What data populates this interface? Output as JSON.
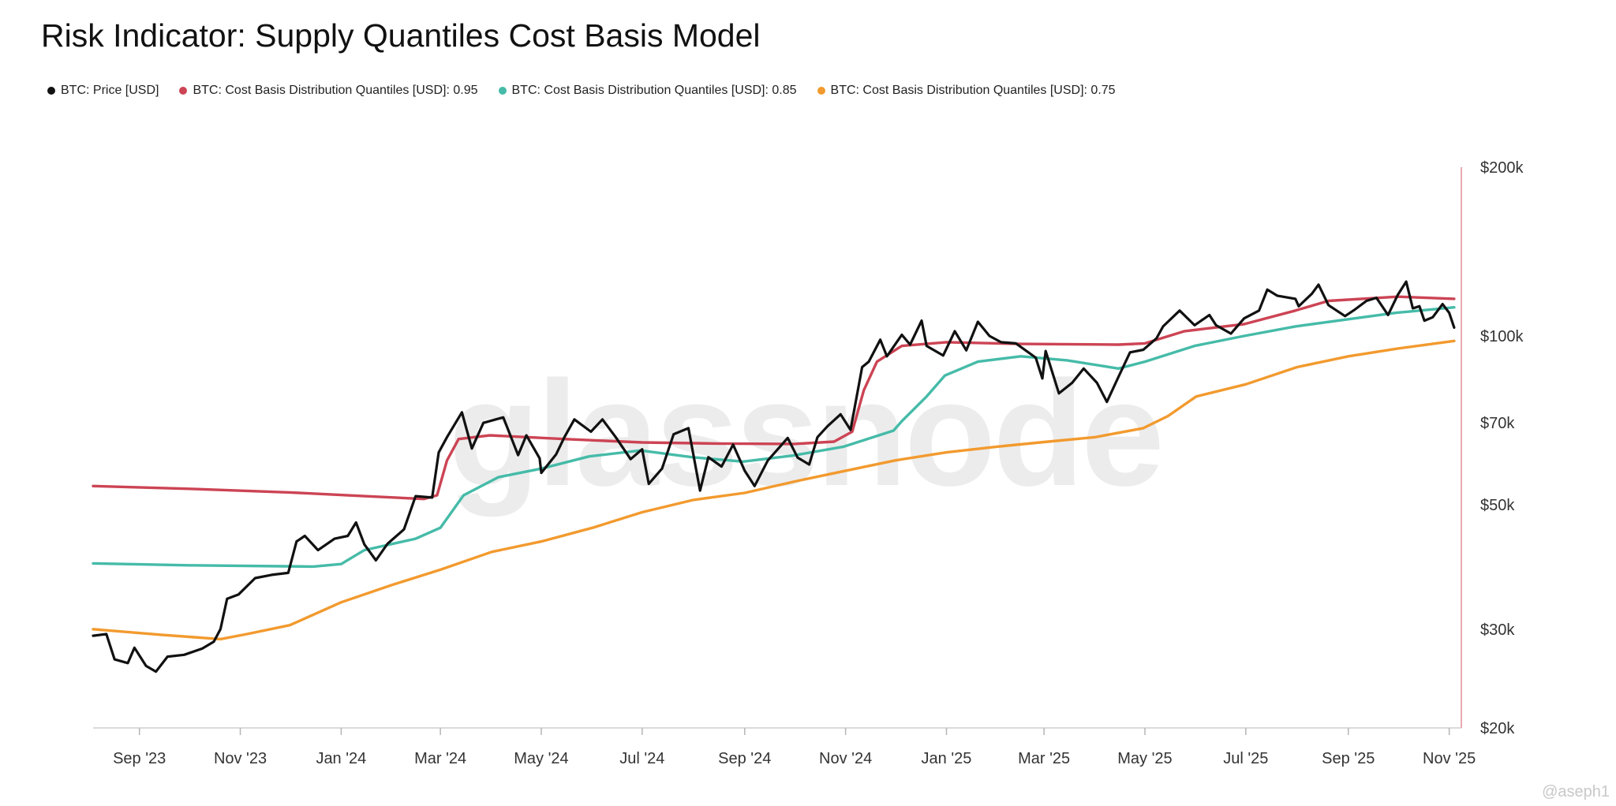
{
  "title": "Risk Indicator: Supply Quantiles Cost Basis Model",
  "watermark": "glassnode",
  "credit": "@aseph1",
  "colors": {
    "price": "#111111",
    "q95": "#cc4454",
    "q85": "#45bba8",
    "q75": "#f29a2e",
    "axis": "#cfcfcf",
    "right_axis_line": "#e8aab2"
  },
  "legend": [
    {
      "label": "BTC: Price [USD]",
      "color": "#111111"
    },
    {
      "label": "BTC: Cost Basis Distribution Quantiles [USD]: 0.95",
      "color": "#cc4454"
    },
    {
      "label": "BTC: Cost Basis Distribution Quantiles [USD]: 0.85",
      "color": "#45bba8"
    },
    {
      "label": "BTC: Cost Basis Distribution Quantiles [USD]: 0.75",
      "color": "#f29a2e"
    }
  ],
  "chart_data": {
    "type": "line",
    "title": "Risk Indicator: Supply Quantiles Cost Basis Model",
    "y_scale": "log",
    "ylim": [
      20000,
      200000
    ],
    "xlim": [
      "2023-08-04",
      "2025-11-05"
    ],
    "x_ticks": [
      {
        "date": "2023-09-01",
        "label": "Sep '23"
      },
      {
        "date": "2023-11-01",
        "label": "Nov '23"
      },
      {
        "date": "2024-01-01",
        "label": "Jan '24"
      },
      {
        "date": "2024-03-01",
        "label": "Mar '24"
      },
      {
        "date": "2024-05-01",
        "label": "May '24"
      },
      {
        "date": "2024-07-01",
        "label": "Jul '24"
      },
      {
        "date": "2024-09-01",
        "label": "Sep '24"
      },
      {
        "date": "2024-11-01",
        "label": "Nov '24"
      },
      {
        "date": "2025-01-01",
        "label": "Jan '25"
      },
      {
        "date": "2025-03-01",
        "label": "Mar '25"
      },
      {
        "date": "2025-05-01",
        "label": "May '25"
      },
      {
        "date": "2025-07-01",
        "label": "Jul '25"
      },
      {
        "date": "2025-09-01",
        "label": "Sep '25"
      },
      {
        "date": "2025-11-01",
        "label": "Nov '25"
      }
    ],
    "y_ticks": [
      {
        "value": 200000,
        "label": "$200k"
      },
      {
        "value": 100000,
        "label": "$100k"
      },
      {
        "value": 70000,
        "label": "$70k"
      },
      {
        "value": 50000,
        "label": "$50k"
      },
      {
        "value": 30000,
        "label": "$30k"
      },
      {
        "value": 20000,
        "label": "$20k"
      }
    ],
    "series": [
      {
        "name": "BTC: Price [USD]",
        "color": "#111111",
        "points": [
          [
            "2023-08-04",
            29200
          ],
          [
            "2023-08-12",
            29400
          ],
          [
            "2023-08-17",
            26500
          ],
          [
            "2023-08-25",
            26100
          ],
          [
            "2023-08-29",
            27800
          ],
          [
            "2023-09-05",
            25800
          ],
          [
            "2023-09-11",
            25200
          ],
          [
            "2023-09-18",
            26800
          ],
          [
            "2023-09-28",
            27000
          ],
          [
            "2023-10-09",
            27700
          ],
          [
            "2023-10-16",
            28500
          ],
          [
            "2023-10-20",
            30000
          ],
          [
            "2023-10-24",
            34000
          ],
          [
            "2023-10-31",
            34600
          ],
          [
            "2023-11-10",
            37000
          ],
          [
            "2023-11-20",
            37500
          ],
          [
            "2023-11-30",
            37800
          ],
          [
            "2023-12-05",
            43000
          ],
          [
            "2023-12-10",
            44000
          ],
          [
            "2023-12-18",
            41500
          ],
          [
            "2023-12-28",
            43500
          ],
          [
            "2024-01-05",
            44000
          ],
          [
            "2024-01-10",
            46500
          ],
          [
            "2024-01-15",
            42500
          ],
          [
            "2024-01-22",
            39800
          ],
          [
            "2024-01-29",
            42600
          ],
          [
            "2024-02-08",
            45200
          ],
          [
            "2024-02-15",
            51800
          ],
          [
            "2024-02-25",
            51500
          ],
          [
            "2024-02-29",
            62000
          ],
          [
            "2024-03-05",
            66000
          ],
          [
            "2024-03-14",
            73100
          ],
          [
            "2024-03-20",
            63000
          ],
          [
            "2024-03-27",
            70000
          ],
          [
            "2024-04-08",
            71600
          ],
          [
            "2024-04-17",
            61300
          ],
          [
            "2024-04-22",
            66500
          ],
          [
            "2024-04-30",
            60500
          ],
          [
            "2024-05-01",
            57000
          ],
          [
            "2024-05-10",
            61500
          ],
          [
            "2024-05-15",
            66000
          ],
          [
            "2024-05-21",
            71000
          ],
          [
            "2024-05-31",
            67500
          ],
          [
            "2024-06-07",
            71000
          ],
          [
            "2024-06-15",
            66000
          ],
          [
            "2024-06-24",
            60300
          ],
          [
            "2024-07-01",
            62800
          ],
          [
            "2024-07-05",
            54500
          ],
          [
            "2024-07-13",
            58000
          ],
          [
            "2024-07-20",
            66800
          ],
          [
            "2024-07-29",
            68500
          ],
          [
            "2024-08-05",
            53000
          ],
          [
            "2024-08-10",
            60800
          ],
          [
            "2024-08-18",
            58500
          ],
          [
            "2024-08-25",
            64000
          ],
          [
            "2024-09-01",
            57500
          ],
          [
            "2024-09-07",
            54000
          ],
          [
            "2024-09-15",
            60000
          ],
          [
            "2024-09-27",
            65800
          ],
          [
            "2024-10-03",
            60700
          ],
          [
            "2024-10-10",
            59000
          ],
          [
            "2024-10-15",
            66000
          ],
          [
            "2024-10-21",
            69000
          ],
          [
            "2024-10-29",
            72500
          ],
          [
            "2024-11-04",
            68000
          ],
          [
            "2024-11-11",
            88000
          ],
          [
            "2024-11-15",
            90000
          ],
          [
            "2024-11-22",
            98500
          ],
          [
            "2024-11-26",
            92000
          ],
          [
            "2024-12-05",
            100500
          ],
          [
            "2024-12-10",
            96500
          ],
          [
            "2024-12-17",
            106500
          ],
          [
            "2024-12-20",
            96000
          ],
          [
            "2024-12-30",
            92300
          ],
          [
            "2025-01-06",
            102000
          ],
          [
            "2025-01-13",
            94300
          ],
          [
            "2025-01-20",
            106000
          ],
          [
            "2025-01-27",
            100000
          ],
          [
            "2025-02-03",
            97500
          ],
          [
            "2025-02-12",
            97000
          ],
          [
            "2025-02-24",
            91500
          ],
          [
            "2025-02-28",
            84000
          ],
          [
            "2025-03-02",
            94000
          ],
          [
            "2025-03-10",
            79000
          ],
          [
            "2025-03-18",
            82500
          ],
          [
            "2025-03-25",
            87500
          ],
          [
            "2025-04-02",
            82500
          ],
          [
            "2025-04-08",
            76300
          ],
          [
            "2025-04-15",
            84500
          ],
          [
            "2025-04-22",
            93500
          ],
          [
            "2025-04-30",
            94500
          ],
          [
            "2025-05-08",
            99000
          ],
          [
            "2025-05-12",
            104000
          ],
          [
            "2025-05-22",
            111000
          ],
          [
            "2025-05-31",
            104500
          ],
          [
            "2025-06-09",
            109000
          ],
          [
            "2025-06-13",
            104500
          ],
          [
            "2025-06-22",
            101000
          ],
          [
            "2025-06-30",
            107500
          ],
          [
            "2025-07-09",
            111000
          ],
          [
            "2025-07-14",
            121000
          ],
          [
            "2025-07-20",
            118000
          ],
          [
            "2025-07-31",
            116500
          ],
          [
            "2025-08-02",
            113000
          ],
          [
            "2025-08-10",
            119000
          ],
          [
            "2025-08-14",
            123500
          ],
          [
            "2025-08-20",
            113500
          ],
          [
            "2025-08-30",
            108500
          ],
          [
            "2025-09-05",
            111500
          ],
          [
            "2025-09-12",
            115500
          ],
          [
            "2025-09-18",
            117000
          ],
          [
            "2025-09-25",
            109000
          ],
          [
            "2025-10-01",
            118500
          ],
          [
            "2025-10-06",
            125000
          ],
          [
            "2025-10-10",
            112000
          ],
          [
            "2025-10-14",
            113000
          ],
          [
            "2025-10-17",
            106500
          ],
          [
            "2025-10-22",
            108000
          ],
          [
            "2025-10-28",
            114000
          ],
          [
            "2025-11-01",
            110000
          ],
          [
            "2025-11-04",
            103500
          ]
        ]
      },
      {
        "name": "BTC: Cost Basis Distribution Quantiles [USD]: 0.95",
        "color": "#cc4454",
        "points": [
          [
            "2023-08-04",
            54000
          ],
          [
            "2023-10-01",
            53400
          ],
          [
            "2023-12-01",
            52600
          ],
          [
            "2024-01-15",
            51800
          ],
          [
            "2024-02-20",
            51200
          ],
          [
            "2024-02-28",
            52000
          ],
          [
            "2024-03-05",
            60000
          ],
          [
            "2024-03-12",
            65500
          ],
          [
            "2024-03-31",
            66500
          ],
          [
            "2024-05-15",
            65500
          ],
          [
            "2024-07-01",
            64600
          ],
          [
            "2024-08-15",
            64300
          ],
          [
            "2024-10-01",
            64200
          ],
          [
            "2024-10-25",
            64800
          ],
          [
            "2024-11-05",
            67500
          ],
          [
            "2024-11-12",
            80000
          ],
          [
            "2024-11-20",
            90000
          ],
          [
            "2024-12-05",
            96000
          ],
          [
            "2025-01-01",
            97500
          ],
          [
            "2025-02-15",
            96800
          ],
          [
            "2025-04-15",
            96500
          ],
          [
            "2025-05-01",
            97000
          ],
          [
            "2025-05-25",
            102000
          ],
          [
            "2025-06-30",
            105000
          ],
          [
            "2025-07-31",
            111000
          ],
          [
            "2025-08-20",
            115500
          ],
          [
            "2025-10-01",
            117500
          ],
          [
            "2025-11-04",
            116500
          ]
        ]
      },
      {
        "name": "BTC: Cost Basis Distribution Quantiles [USD]: 0.85",
        "color": "#45bba8",
        "points": [
          [
            "2023-08-04",
            39300
          ],
          [
            "2023-10-01",
            39000
          ],
          [
            "2023-12-15",
            38800
          ],
          [
            "2024-01-01",
            39200
          ],
          [
            "2024-01-15",
            41500
          ],
          [
            "2024-02-15",
            43500
          ],
          [
            "2024-03-01",
            45500
          ],
          [
            "2024-03-15",
            52000
          ],
          [
            "2024-04-05",
            56000
          ],
          [
            "2024-05-01",
            58000
          ],
          [
            "2024-05-30",
            61000
          ],
          [
            "2024-06-30",
            62500
          ],
          [
            "2024-07-31",
            60800
          ],
          [
            "2024-08-31",
            59700
          ],
          [
            "2024-09-30",
            61200
          ],
          [
            "2024-10-31",
            63500
          ],
          [
            "2024-11-30",
            67800
          ],
          [
            "2024-12-05",
            70500
          ],
          [
            "2024-12-20",
            78000
          ],
          [
            "2024-12-31",
            85000
          ],
          [
            "2025-01-20",
            90000
          ],
          [
            "2025-02-15",
            92000
          ],
          [
            "2025-03-15",
            90500
          ],
          [
            "2025-04-15",
            87500
          ],
          [
            "2025-05-01",
            90000
          ],
          [
            "2025-05-31",
            96000
          ],
          [
            "2025-06-30",
            100000
          ],
          [
            "2025-07-31",
            104000
          ],
          [
            "2025-08-31",
            107000
          ],
          [
            "2025-09-30",
            110000
          ],
          [
            "2025-11-04",
            112500
          ]
        ]
      },
      {
        "name": "BTC: Cost Basis Distribution Quantiles [USD]: 0.75",
        "color": "#f29a2e",
        "points": [
          [
            "2023-08-04",
            30000
          ],
          [
            "2023-09-15",
            29300
          ],
          [
            "2023-10-20",
            28800
          ],
          [
            "2023-11-05",
            29400
          ],
          [
            "2023-12-01",
            30500
          ],
          [
            "2024-01-01",
            33500
          ],
          [
            "2024-02-01",
            36000
          ],
          [
            "2024-03-01",
            38300
          ],
          [
            "2024-04-01",
            41200
          ],
          [
            "2024-05-01",
            43000
          ],
          [
            "2024-06-01",
            45500
          ],
          [
            "2024-07-01",
            48500
          ],
          [
            "2024-08-01",
            51000
          ],
          [
            "2024-09-01",
            52500
          ],
          [
            "2024-10-01",
            55000
          ],
          [
            "2024-11-01",
            57500
          ],
          [
            "2024-12-01",
            60000
          ],
          [
            "2025-01-01",
            62000
          ],
          [
            "2025-02-01",
            63500
          ],
          [
            "2025-03-01",
            64700
          ],
          [
            "2025-04-01",
            66000
          ],
          [
            "2025-04-30",
            68500
          ],
          [
            "2025-05-15",
            72000
          ],
          [
            "2025-06-01",
            78000
          ],
          [
            "2025-07-01",
            82000
          ],
          [
            "2025-08-01",
            88000
          ],
          [
            "2025-09-01",
            92000
          ],
          [
            "2025-10-01",
            95000
          ],
          [
            "2025-11-04",
            98000
          ]
        ]
      }
    ]
  }
}
